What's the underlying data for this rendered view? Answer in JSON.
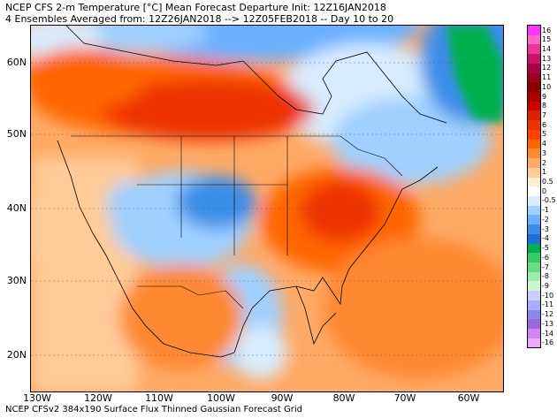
{
  "title_line1": "NCEP CFS 2-m Temperature [°C] Mean Forecast Departure Init: 12Z16JAN2018",
  "title_line2": "4 Ensembles Averaged from: 12Z26JAN2018 --> 12Z05FEB2018 -- Day 10 to 20",
  "footer": "NCEP CFSv2 384x190 Surface Flux Thinned Gaussian Forecast Grid",
  "lat_labels": [
    "60N",
    "50N",
    "40N",
    "30N",
    "20N"
  ],
  "lon_labels": [
    "130W",
    "120W",
    "110W",
    "100W",
    "90W",
    "80W",
    "70W",
    "60W"
  ],
  "colorbar": {
    "labels": [
      "16",
      "15",
      "14",
      "13",
      "12",
      "11",
      "10",
      "9",
      "8",
      "7",
      "6",
      "5",
      "4",
      "3",
      "2",
      "1",
      "0.5",
      "0",
      "-0.5",
      "-1",
      "-2",
      "-3",
      "-4",
      "-5",
      "-6",
      "-7",
      "-8",
      "-9",
      "-10",
      "-11",
      "-12",
      "-13",
      "-14",
      "-16"
    ],
    "colors": [
      "#ff33ff",
      "#ff66cc",
      "#ee3399",
      "#cc1166",
      "#aa0044",
      "#990022",
      "#880000",
      "#aa0000",
      "#cc0000",
      "#dd2200",
      "#ee3300",
      "#ff4400",
      "#ff6600",
      "#ff8833",
      "#ffaa66",
      "#ffcc99",
      "#ffeecc",
      "#ffffff",
      "#d8ecff",
      "#9fd0ff",
      "#6ab0ff",
      "#3a8ee8",
      "#1f6fd8",
      "#00b050",
      "#33cc66",
      "#66dd88",
      "#99eeaa",
      "#ccf5cc",
      "#ccccff",
      "#aaaaff",
      "#8888ee",
      "#9966dd",
      "#cc88ee",
      "#eeaaff"
    ]
  }
}
